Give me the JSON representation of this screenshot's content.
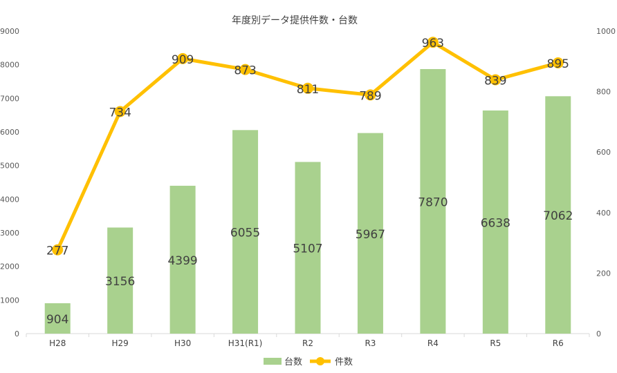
{
  "chart_data": {
    "type": "bar+line",
    "title": "年度別データ提供件数・台数",
    "categories": [
      "H28",
      "H29",
      "H30",
      "H31(R1)",
      "R2",
      "R3",
      "R4",
      "R5",
      "R6"
    ],
    "series": [
      {
        "name": "台数",
        "type": "bar",
        "axis": "left",
        "values": [
          904,
          3156,
          4399,
          6055,
          5107,
          5967,
          7870,
          6638,
          7062
        ],
        "color": "#a9d18e"
      },
      {
        "name": "件数",
        "type": "line",
        "axis": "right",
        "values": [
          277,
          734,
          909,
          873,
          811,
          789,
          963,
          839,
          895
        ],
        "color": "#ffc000"
      }
    ],
    "y_left": {
      "min": 0,
      "max": 9000,
      "step": 1000,
      "ticks": [
        "0",
        "1000",
        "2000",
        "3000",
        "4000",
        "5000",
        "6000",
        "7000",
        "8000",
        "9000"
      ]
    },
    "y_right": {
      "min": 0,
      "max": 1000,
      "step": 200,
      "ticks": [
        "0",
        "200",
        "400",
        "600",
        "800",
        "1000"
      ]
    },
    "grid": false,
    "legend_position": "bottom"
  }
}
